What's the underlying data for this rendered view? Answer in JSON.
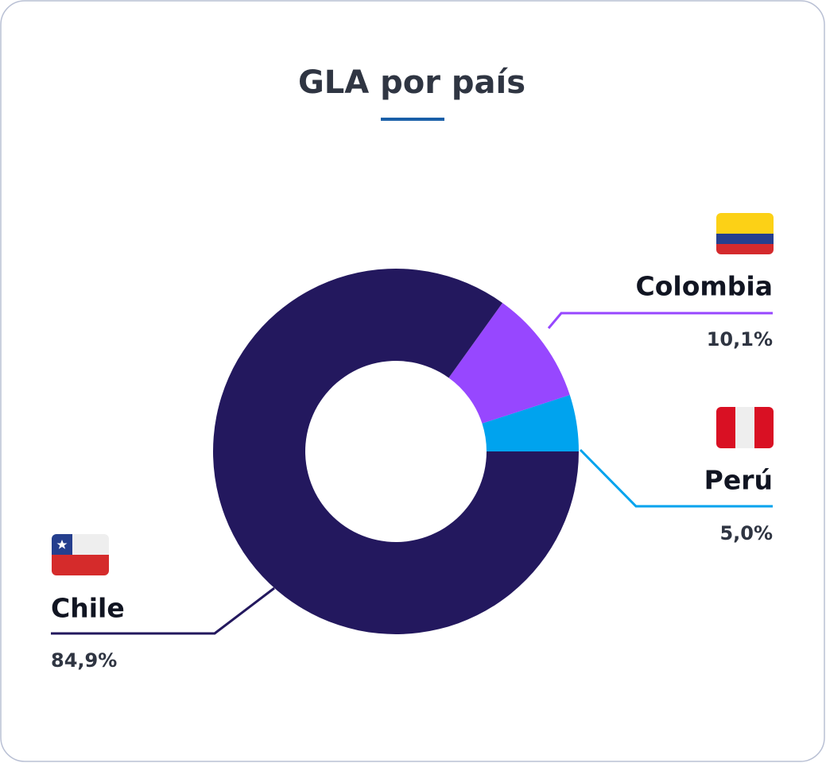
{
  "chart_data": {
    "type": "donut",
    "title": "GLA por país",
    "categories": [
      "Perú",
      "Colombia",
      "Chile"
    ],
    "values": [
      5.0,
      10.1,
      84.9
    ],
    "value_labels": [
      "5,0%",
      "10,1%",
      "84,9%"
    ],
    "colors": [
      "#00a3ee",
      "#9747ff",
      "#23185e"
    ]
  }
}
